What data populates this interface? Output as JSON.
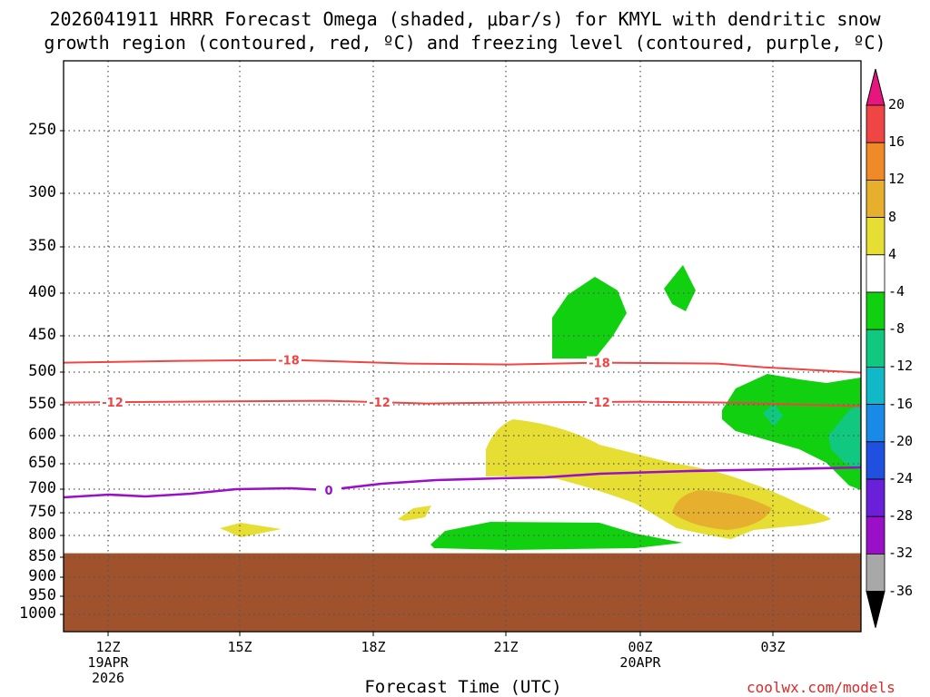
{
  "title": {
    "line1": "2026041911 HRRR Forecast Omega (shaded, μbar/s) for KMYL with dendritic snow",
    "line2": "growth region (contoured, red, ºC) and freezing level (contoured, purple, ºC)"
  },
  "credit": "coolwx.com/models",
  "chart_data": {
    "type": "contour",
    "title": "2026041911 HRRR Forecast Omega (shaded, μbar/s) for KMYL with dendritic snow growth region (contoured, red, ºC) and freezing level (contoured, purple, ºC)",
    "xlabel": "Forecast Time (UTC)",
    "ylabel": "",
    "y_axis": {
      "scale": "pressure (inverted)",
      "ticks": [
        "250",
        "300",
        "350",
        "400",
        "450",
        "500",
        "550",
        "600",
        "650",
        "700",
        "750",
        "800",
        "850",
        "900",
        "950",
        "1000"
      ]
    },
    "x_axis": {
      "ticks": [
        {
          "label": "12Z",
          "sub": [
            "19APR",
            "2026"
          ]
        },
        {
          "label": "15Z",
          "sub": []
        },
        {
          "label": "18Z",
          "sub": []
        },
        {
          "label": "21Z",
          "sub": []
        },
        {
          "label": "00Z",
          "sub": [
            "20APR"
          ]
        },
        {
          "label": "03Z",
          "sub": []
        }
      ]
    },
    "grid": true,
    "colorbar": {
      "position": "right",
      "levels": [
        "20",
        "16",
        "12",
        "8",
        "4",
        "-4",
        "-8",
        "-12",
        "-16",
        "-20",
        "-24",
        "-28",
        "-32",
        "-36"
      ],
      "colors": [
        "#e8157e",
        "#f04545",
        "#f08a28",
        "#e6b02e",
        "#e6de33",
        "#ffffff",
        "#10d010",
        "#10c880",
        "#10b8c8",
        "#1a8ae8",
        "#2050e0",
        "#6a20d8",
        "#9a10c8",
        "#a8a8a8",
        "#000000"
      ]
    },
    "contours": [
      {
        "label": "-18",
        "color": "#f04545",
        "level_hpa": 487
      },
      {
        "label": "-12",
        "color": "#f04545",
        "level_hpa": 548
      },
      {
        "label": "0",
        "color": "#9a10c8",
        "level_hpa": 700
      }
    ],
    "terrain": {
      "color": "#a0522d",
      "top_hpa": 845
    }
  }
}
